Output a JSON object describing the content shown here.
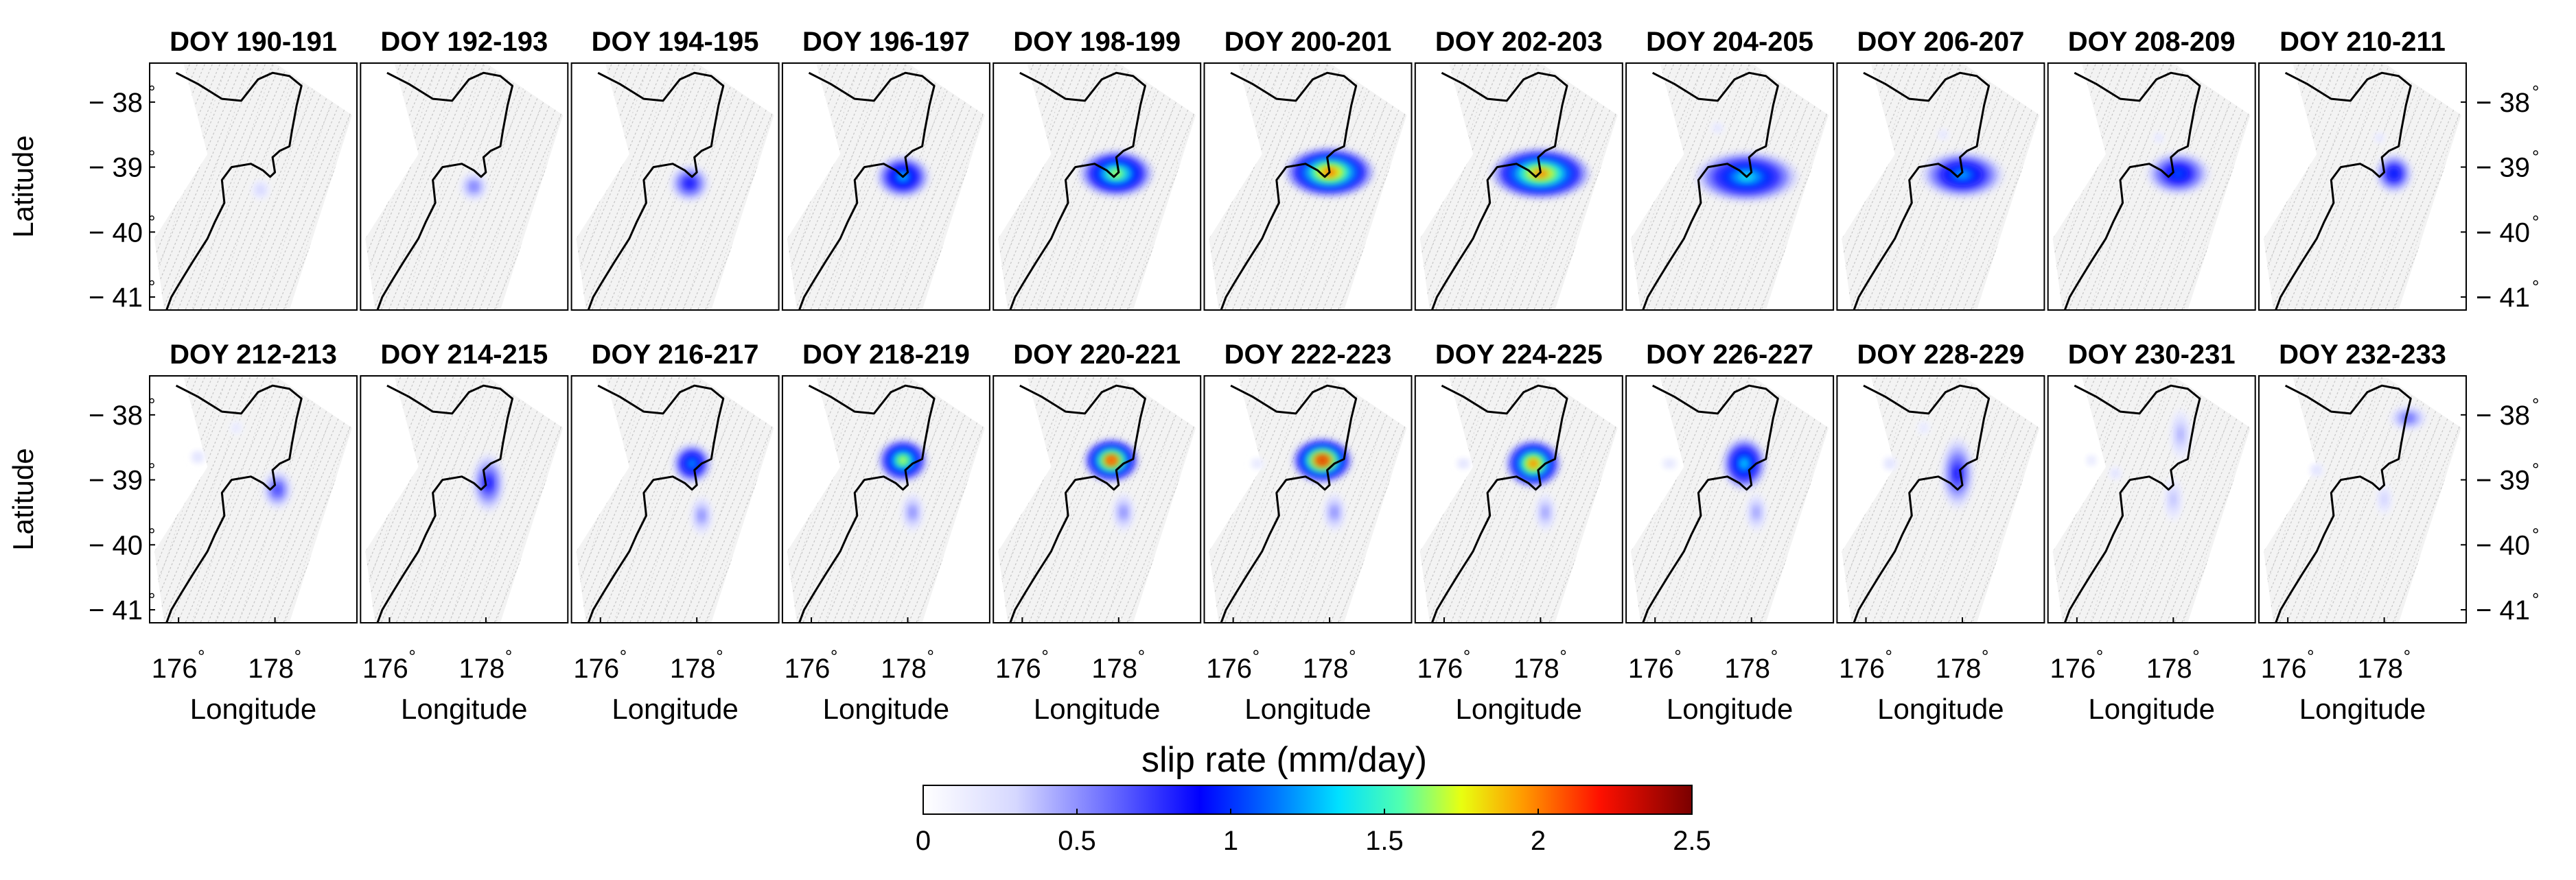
{
  "chart_data": {
    "type": "heatmap",
    "colorbar": {
      "label": "slip rate (mm/day)",
      "ticks": [
        "0",
        "0.5",
        "1",
        "1.5",
        "2",
        "2.5"
      ],
      "range": [
        0,
        2.5
      ],
      "colormap": "white-blue-jet"
    },
    "shared_axes": {
      "xlabel": "Longitude",
      "ylabel": "Latitude",
      "xticks": [
        {
          "value": 176,
          "label": "176",
          "sup": "°"
        },
        {
          "value": 178,
          "label": "178",
          "sup": "°"
        }
      ],
      "yticks": [
        {
          "value": -38,
          "label": "− 38",
          "sup": "°"
        },
        {
          "value": -39,
          "label": "− 39",
          "sup": "°"
        },
        {
          "value": -40,
          "label": "− 40",
          "sup": "°"
        },
        {
          "value": -41,
          "label": "− 41",
          "sup": "°"
        }
      ],
      "xlim": [
        175.4,
        179.7
      ],
      "ylim": [
        -41.2,
        -37.4
      ]
    },
    "panels": [
      {
        "title": "DOY 190-191",
        "sources": [
          {
            "lon": 177.7,
            "lat": -39.35,
            "slip": 0.35,
            "rx": 0.18,
            "ry": 0.15
          }
        ]
      },
      {
        "title": "DOY 192-193",
        "sources": [
          {
            "lon": 177.75,
            "lat": -39.3,
            "slip": 0.6,
            "rx": 0.28,
            "ry": 0.22
          }
        ]
      },
      {
        "title": "DOY 194-195",
        "sources": [
          {
            "lon": 177.85,
            "lat": -39.25,
            "slip": 0.9,
            "rx": 0.4,
            "ry": 0.28
          }
        ]
      },
      {
        "title": "DOY 196-197",
        "sources": [
          {
            "lon": 177.9,
            "lat": -39.15,
            "slip": 1.3,
            "rx": 0.55,
            "ry": 0.32
          }
        ]
      },
      {
        "title": "DOY 198-199",
        "sources": [
          {
            "lon": 177.95,
            "lat": -39.1,
            "slip": 1.7,
            "rx": 0.75,
            "ry": 0.35
          }
        ]
      },
      {
        "title": "DOY 200-201",
        "sources": [
          {
            "lon": 178.0,
            "lat": -39.08,
            "slip": 2.05,
            "rx": 0.9,
            "ry": 0.37
          }
        ]
      },
      {
        "title": "DOY 202-203",
        "sources": [
          {
            "lon": 178.0,
            "lat": -39.1,
            "slip": 2.0,
            "rx": 1.0,
            "ry": 0.38
          }
        ]
      },
      {
        "title": "DOY 204-205",
        "sources": [
          {
            "lon": 177.9,
            "lat": -39.15,
            "slip": 1.4,
            "rx": 1.05,
            "ry": 0.38
          },
          {
            "lon": 177.3,
            "lat": -38.4,
            "slip": 0.3,
            "rx": 0.12,
            "ry": 0.08
          }
        ]
      },
      {
        "title": "DOY 206-207",
        "sources": [
          {
            "lon": 178.0,
            "lat": -39.12,
            "slip": 1.25,
            "rx": 0.85,
            "ry": 0.35
          },
          {
            "lon": 177.6,
            "lat": -38.5,
            "slip": 0.3,
            "rx": 0.1,
            "ry": 0.08
          }
        ]
      },
      {
        "title": "DOY 208-209",
        "sources": [
          {
            "lon": 178.1,
            "lat": -39.1,
            "slip": 1.1,
            "rx": 0.65,
            "ry": 0.32
          },
          {
            "lon": 177.7,
            "lat": -38.55,
            "slip": 0.3,
            "rx": 0.1,
            "ry": 0.08
          }
        ]
      },
      {
        "title": "DOY 210-211",
        "sources": [
          {
            "lon": 178.2,
            "lat": -39.1,
            "slip": 1.0,
            "rx": 0.38,
            "ry": 0.3
          },
          {
            "lon": 177.9,
            "lat": -38.55,
            "slip": 0.3,
            "rx": 0.1,
            "ry": 0.08
          }
        ]
      },
      {
        "title": "DOY 212-213",
        "sources": [
          {
            "lon": 178.05,
            "lat": -39.15,
            "slip": 0.75,
            "rx": 0.3,
            "ry": 0.3
          },
          {
            "lon": 176.4,
            "lat": -38.65,
            "slip": 0.3,
            "rx": 0.14,
            "ry": 0.1
          },
          {
            "lon": 177.2,
            "lat": -38.2,
            "slip": 0.25,
            "rx": 0.12,
            "ry": 0.1
          }
        ]
      },
      {
        "title": "DOY 214-215",
        "sources": [
          {
            "lon": 178.05,
            "lat": -39.05,
            "slip": 0.85,
            "rx": 0.33,
            "ry": 0.45
          }
        ]
      },
      {
        "title": "DOY 216-217",
        "sources": [
          {
            "lon": 177.9,
            "lat": -38.75,
            "slip": 1.25,
            "rx": 0.4,
            "ry": 0.3
          },
          {
            "lon": 178.1,
            "lat": -39.55,
            "slip": 0.55,
            "rx": 0.22,
            "ry": 0.3
          }
        ]
      },
      {
        "title": "DOY 218-219",
        "sources": [
          {
            "lon": 177.9,
            "lat": -38.7,
            "slip": 1.75,
            "rx": 0.5,
            "ry": 0.32
          },
          {
            "lon": 178.1,
            "lat": -39.5,
            "slip": 0.55,
            "rx": 0.22,
            "ry": 0.3
          }
        ]
      },
      {
        "title": "DOY 220-221",
        "sources": [
          {
            "lon": 177.85,
            "lat": -38.7,
            "slip": 2.2,
            "rx": 0.55,
            "ry": 0.32
          },
          {
            "lon": 178.1,
            "lat": -39.5,
            "slip": 0.55,
            "rx": 0.22,
            "ry": 0.3
          }
        ]
      },
      {
        "title": "DOY 222-223",
        "sources": [
          {
            "lon": 177.85,
            "lat": -38.7,
            "slip": 2.3,
            "rx": 0.6,
            "ry": 0.33
          },
          {
            "lon": 178.1,
            "lat": -39.5,
            "slip": 0.55,
            "rx": 0.22,
            "ry": 0.3
          },
          {
            "lon": 176.5,
            "lat": -38.75,
            "slip": 0.25,
            "rx": 0.14,
            "ry": 0.08
          }
        ]
      },
      {
        "title": "DOY 224-225",
        "sources": [
          {
            "lon": 177.85,
            "lat": -38.75,
            "slip": 2.05,
            "rx": 0.55,
            "ry": 0.35
          },
          {
            "lon": 178.1,
            "lat": -39.5,
            "slip": 0.5,
            "rx": 0.2,
            "ry": 0.3
          },
          {
            "lon": 176.4,
            "lat": -38.75,
            "slip": 0.3,
            "rx": 0.14,
            "ry": 0.08
          }
        ]
      },
      {
        "title": "DOY 226-227",
        "sources": [
          {
            "lon": 177.85,
            "lat": -38.75,
            "slip": 1.35,
            "rx": 0.45,
            "ry": 0.4
          },
          {
            "lon": 178.1,
            "lat": -39.5,
            "slip": 0.5,
            "rx": 0.2,
            "ry": 0.3
          },
          {
            "lon": 176.3,
            "lat": -38.75,
            "slip": 0.25,
            "rx": 0.16,
            "ry": 0.08
          }
        ]
      },
      {
        "title": "DOY 228-229",
        "sources": [
          {
            "lon": 177.9,
            "lat": -38.9,
            "slip": 0.85,
            "rx": 0.33,
            "ry": 0.55
          },
          {
            "lon": 176.5,
            "lat": -38.75,
            "slip": 0.3,
            "rx": 0.14,
            "ry": 0.1
          },
          {
            "lon": 177.2,
            "lat": -38.2,
            "slip": 0.25,
            "rx": 0.12,
            "ry": 0.1
          }
        ]
      },
      {
        "title": "DOY 230-231",
        "sources": [
          {
            "lon": 178.15,
            "lat": -38.3,
            "slip": 0.45,
            "rx": 0.2,
            "ry": 0.4
          },
          {
            "lon": 178.0,
            "lat": -39.3,
            "slip": 0.4,
            "rx": 0.18,
            "ry": 0.35
          },
          {
            "lon": 176.8,
            "lat": -38.9,
            "slip": 0.3,
            "rx": 0.12,
            "ry": 0.1
          },
          {
            "lon": 176.3,
            "lat": -38.7,
            "slip": 0.25,
            "rx": 0.1,
            "ry": 0.08
          }
        ]
      },
      {
        "title": "DOY 232-233",
        "sources": [
          {
            "lon": 178.5,
            "lat": -38.05,
            "slip": 0.65,
            "rx": 0.38,
            "ry": 0.18
          },
          {
            "lon": 178.0,
            "lat": -39.3,
            "slip": 0.35,
            "rx": 0.15,
            "ry": 0.25
          },
          {
            "lon": 176.6,
            "lat": -38.85,
            "slip": 0.3,
            "rx": 0.14,
            "ry": 0.1
          }
        ]
      }
    ]
  }
}
